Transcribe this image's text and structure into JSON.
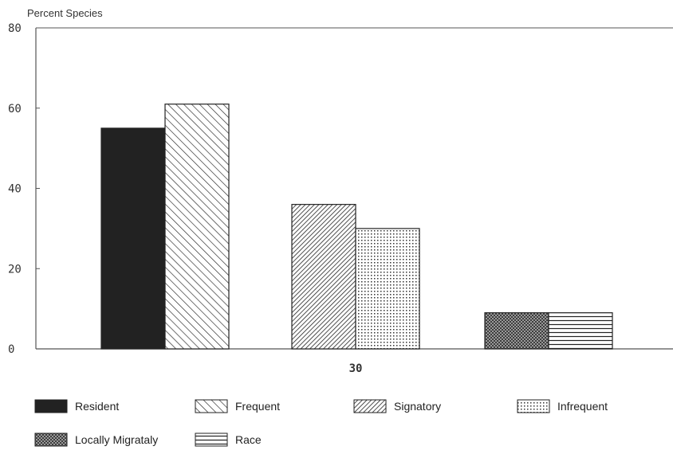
{
  "chart_data": {
    "type": "bar",
    "ylabel": "Percent Species",
    "ylim": [
      0,
      80
    ],
    "yticks": [
      "0",
      "20",
      "40",
      "60",
      "80"
    ],
    "groups": [
      {
        "label": "",
        "bars": [
          {
            "series": "Resident",
            "value": 55
          },
          {
            "series": "Frequent",
            "value": 61
          }
        ]
      },
      {
        "label": "30",
        "bars": [
          {
            "series": "Signatory",
            "value": 36
          },
          {
            "series": "Infrequent",
            "value": 30
          }
        ]
      },
      {
        "label": "",
        "bars": [
          {
            "series": "Locally Migrataly",
            "value": 9
          },
          {
            "series": "Race",
            "value": 9
          }
        ]
      }
    ],
    "legend": [
      {
        "name": "Resident",
        "pattern": "solid-dark"
      },
      {
        "name": "Frequent",
        "pattern": "diagonal-wide"
      },
      {
        "name": "Signatory",
        "pattern": "diagonal-dense"
      },
      {
        "name": "Infrequent",
        "pattern": "dots"
      },
      {
        "name": "Locally Migrataly",
        "pattern": "crosshatch"
      },
      {
        "name": "Race",
        "pattern": "horizontal-lines"
      }
    ],
    "grid": false,
    "legend_position": "bottom",
    "colors": {
      "ink": "#222222",
      "axis": "#555555",
      "background": "#ffffff"
    }
  }
}
